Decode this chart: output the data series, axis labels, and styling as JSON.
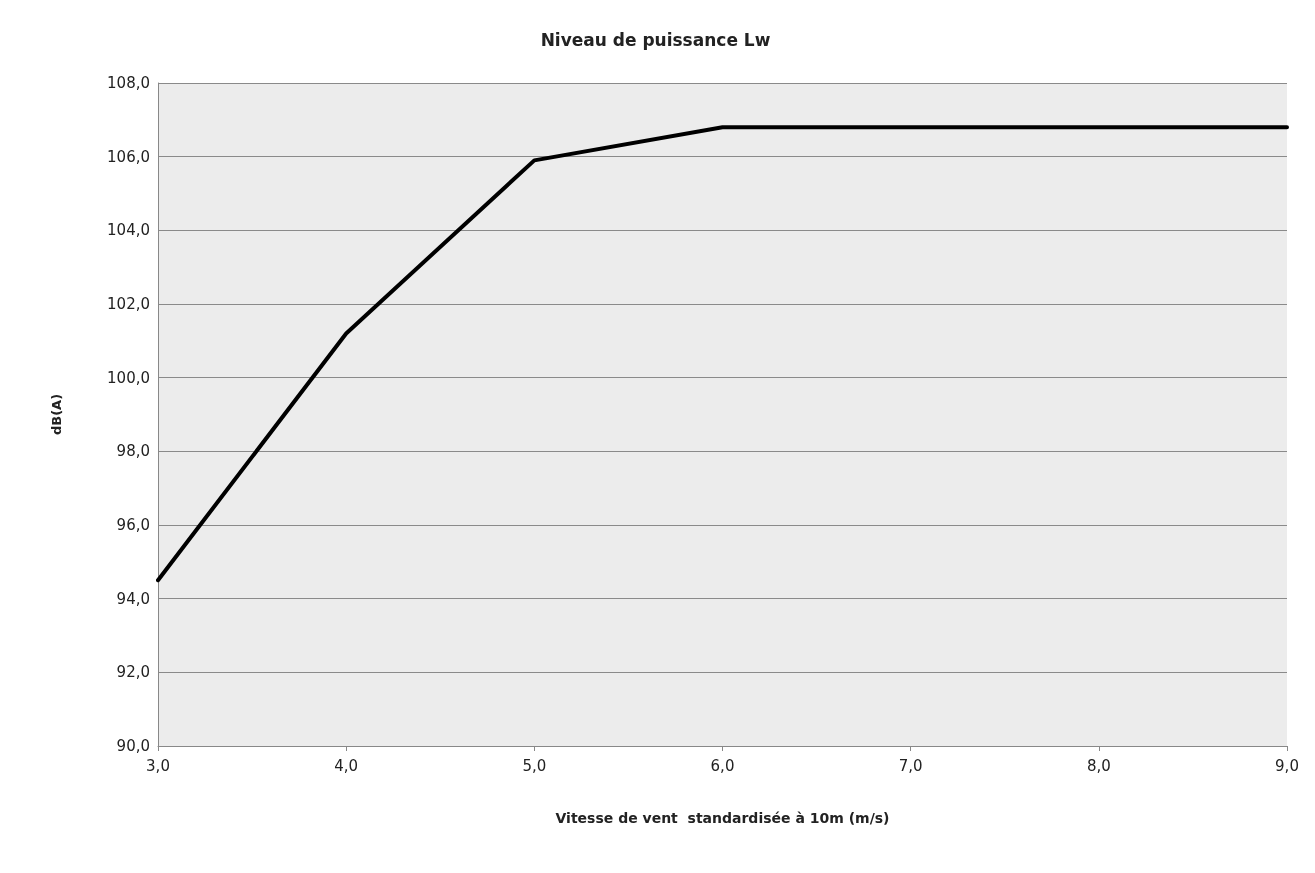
{
  "chart_data": {
    "type": "line",
    "title": "Niveau de puissance Lw",
    "xlabel": "Vitesse de vent  standardisée à 10m (m/s)",
    "ylabel": "dB(A)",
    "x": [
      3,
      4,
      5,
      6,
      7,
      8,
      9
    ],
    "series": [
      {
        "color": "#000000",
        "values": [
          94.5,
          101.2,
          105.9,
          106.8,
          106.8,
          106.8,
          106.8
        ]
      }
    ],
    "xlim": [
      3,
      9
    ],
    "xticks": [
      {
        "value": 3,
        "label": "3,0"
      },
      {
        "value": 4,
        "label": "4,0"
      },
      {
        "value": 5,
        "label": "5,0"
      },
      {
        "value": 6,
        "label": "6,0"
      },
      {
        "value": 7,
        "label": "7,0"
      },
      {
        "value": 8,
        "label": "8,0"
      },
      {
        "value": 9,
        "label": "9,0"
      }
    ],
    "ylim": [
      90,
      108
    ],
    "yticks": [
      {
        "value": 90,
        "label": "90,0"
      },
      {
        "value": 92,
        "label": "92,0"
      },
      {
        "value": 94,
        "label": "94,0"
      },
      {
        "value": 96,
        "label": "96,0"
      },
      {
        "value": 98,
        "label": "98,0"
      },
      {
        "value": 100,
        "label": "100,0"
      },
      {
        "value": 102,
        "label": "102,0"
      },
      {
        "value": 104,
        "label": "104,0"
      },
      {
        "value": 106,
        "label": "106,0"
      },
      {
        "value": 108,
        "label": "108,0"
      }
    ],
    "grid": "y",
    "marker": "none",
    "line_style": "solid"
  }
}
